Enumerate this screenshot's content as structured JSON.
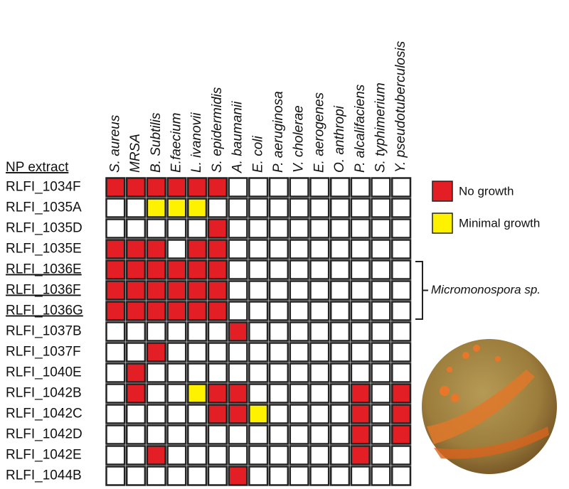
{
  "chart_data": {
    "type": "heatmap",
    "row_header": "NP extract",
    "columns": [
      "S. aureus",
      "MRSA",
      "B. Subtilis",
      "E.faecium",
      "L. ivanovii",
      "S. epidermidis",
      "A. baumanii",
      "E. coli",
      "P. aeruginosa",
      "V. cholerae",
      "E. aerogenes",
      "O. anthropi",
      "P. alcalifaciens",
      "S. typhimerium",
      "Y. pseudotuberculosis"
    ],
    "rows": [
      "RLFI_1034F",
      "RLFI_1035A",
      "RLFI_1035D",
      "RLFI_1035E",
      "RLFI_1036E",
      "RLFI_1036F",
      "RLFI_1036G",
      "RLFI_1037B",
      "RLFI_1037F",
      "RLFI_1040E",
      "RLFI_1042B",
      "RLFI_1042C",
      "RLFI_1042D",
      "RLFI_1042E",
      "RLFI_1044B"
    ],
    "underlined_rows": [
      4,
      5,
      6
    ],
    "values": [
      [
        1,
        1,
        1,
        1,
        1,
        1,
        0,
        0,
        0,
        0,
        0,
        0,
        0,
        0,
        0
      ],
      [
        0,
        0,
        2,
        2,
        2,
        0,
        0,
        0,
        0,
        0,
        0,
        0,
        0,
        0,
        0
      ],
      [
        0,
        0,
        0,
        0,
        0,
        1,
        0,
        0,
        0,
        0,
        0,
        0,
        0,
        0,
        0
      ],
      [
        1,
        1,
        1,
        0,
        1,
        1,
        0,
        0,
        0,
        0,
        0,
        0,
        0,
        0,
        0
      ],
      [
        1,
        1,
        1,
        1,
        1,
        1,
        0,
        0,
        0,
        0,
        0,
        0,
        0,
        0,
        0
      ],
      [
        1,
        1,
        1,
        1,
        1,
        1,
        0,
        0,
        0,
        0,
        0,
        0,
        0,
        0,
        0
      ],
      [
        1,
        1,
        1,
        1,
        1,
        1,
        0,
        0,
        0,
        0,
        0,
        0,
        0,
        0,
        0
      ],
      [
        0,
        0,
        0,
        0,
        0,
        0,
        1,
        0,
        0,
        0,
        0,
        0,
        0,
        0,
        0
      ],
      [
        0,
        0,
        1,
        0,
        0,
        0,
        0,
        0,
        0,
        0,
        0,
        0,
        0,
        0,
        0
      ],
      [
        0,
        1,
        0,
        0,
        0,
        0,
        0,
        0,
        0,
        0,
        0,
        0,
        0,
        0,
        0
      ],
      [
        0,
        1,
        0,
        0,
        2,
        1,
        1,
        0,
        0,
        0,
        0,
        0,
        1,
        0,
        1
      ],
      [
        0,
        0,
        0,
        0,
        0,
        1,
        1,
        2,
        0,
        0,
        0,
        0,
        1,
        0,
        1
      ],
      [
        0,
        0,
        0,
        0,
        0,
        0,
        0,
        0,
        0,
        0,
        0,
        0,
        1,
        0,
        1
      ],
      [
        0,
        0,
        1,
        0,
        0,
        0,
        0,
        0,
        0,
        0,
        0,
        0,
        1,
        0,
        0
      ],
      [
        0,
        0,
        0,
        0,
        0,
        0,
        1,
        0,
        0,
        0,
        0,
        0,
        0,
        0,
        0
      ]
    ],
    "empty_color": "#ffffff",
    "legend": [
      {
        "name": "No growth",
        "value": 1,
        "color": "#e31e24"
      },
      {
        "name": "Minimal growth",
        "value": 2,
        "color": "#fff200"
      }
    ],
    "annotation": {
      "text": "Micromonospora sp.",
      "rows": [
        4,
        6
      ]
    }
  }
}
